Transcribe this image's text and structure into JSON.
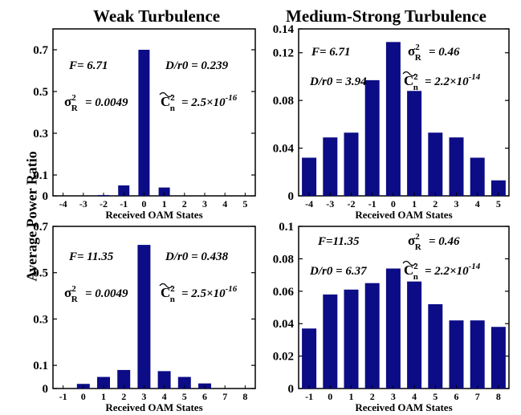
{
  "figure": {
    "column_titles": [
      "Weak Turbulence",
      "Medium-Strong Turbulence"
    ],
    "ylabel": "Average Power Ratio"
  },
  "chart_data": [
    {
      "type": "bar",
      "xlabel": "Received OAM States",
      "categories": [
        "-4",
        "-3",
        "-2",
        "-1",
        "0",
        "1",
        "2",
        "3",
        "4",
        "5"
      ],
      "values": [
        0.0,
        0.0,
        0.004,
        0.05,
        0.7,
        0.04,
        0.0,
        0.0,
        0.0,
        0.0
      ],
      "ylim": [
        0,
        0.8
      ],
      "yticks": [
        "0",
        "0.1",
        "0.3",
        "0.5",
        "0.7"
      ],
      "ytick_values": [
        0,
        0.1,
        0.3,
        0.5,
        0.7
      ],
      "annotations": {
        "F": "F= 6.71",
        "D": "D/r0 = 0.239",
        "sigma": "= 0.0049",
        "cn": "= 2.5×10",
        "exp": "-16"
      },
      "bar_color": "#0c0c86"
    },
    {
      "type": "bar",
      "xlabel": "Received OAM States",
      "categories": [
        "-4",
        "-3",
        "-2",
        "-1",
        "0",
        "1",
        "2",
        "3",
        "4",
        "5"
      ],
      "values": [
        0.032,
        0.049,
        0.053,
        0.097,
        0.129,
        0.088,
        0.053,
        0.049,
        0.032,
        0.013
      ],
      "ylim": [
        0,
        0.14
      ],
      "yticks": [
        "0",
        "0.04",
        "0.08",
        "0.12",
        "0.14"
      ],
      "ytick_values": [
        0,
        0.04,
        0.08,
        0.12,
        0.14
      ],
      "annotations": {
        "F": "F= 6.71",
        "D": "D/r0 = 3.94",
        "sigma": "= 0.46",
        "cn": "= 2.2×10",
        "exp": "-14"
      },
      "bar_color": "#0c0c86"
    },
    {
      "type": "bar",
      "xlabel": "Received OAM States",
      "categories": [
        "-1",
        "0",
        "1",
        "2",
        "3",
        "4",
        "5",
        "6",
        "7",
        "8"
      ],
      "values": [
        0.0,
        0.02,
        0.05,
        0.08,
        0.62,
        0.075,
        0.05,
        0.022,
        0.0,
        0.0
      ],
      "ylim": [
        0,
        0.7
      ],
      "yticks": [
        "0",
        "0.1",
        "0.3",
        "0.5",
        "0.7"
      ],
      "ytick_values": [
        0,
        0.1,
        0.3,
        0.5,
        0.7
      ],
      "annotations": {
        "F": "F= 11.35",
        "D": "D/r0 = 0.438",
        "sigma": "= 0.0049",
        "cn": "= 2.5×10",
        "exp": "-16"
      },
      "bar_color": "#0c0c86"
    },
    {
      "type": "bar",
      "xlabel": "Received OAM States",
      "categories": [
        "-1",
        "0",
        "1",
        "2",
        "3",
        "4",
        "5",
        "6",
        "7",
        "8"
      ],
      "values": [
        0.037,
        0.058,
        0.061,
        0.065,
        0.074,
        0.066,
        0.052,
        0.042,
        0.042,
        0.038
      ],
      "ylim": [
        0,
        0.1
      ],
      "yticks": [
        "0",
        "0.02",
        "0.04",
        "0.06",
        "0.08",
        "0.1"
      ],
      "ytick_values": [
        0,
        0.02,
        0.04,
        0.06,
        0.08,
        0.1
      ],
      "annotations": {
        "F": "F=11.35",
        "D": "D/r0 = 6.37",
        "sigma": "= 0.46",
        "cn": "= 2.2×10",
        "exp": "-14"
      },
      "bar_color": "#0c0c86"
    }
  ]
}
